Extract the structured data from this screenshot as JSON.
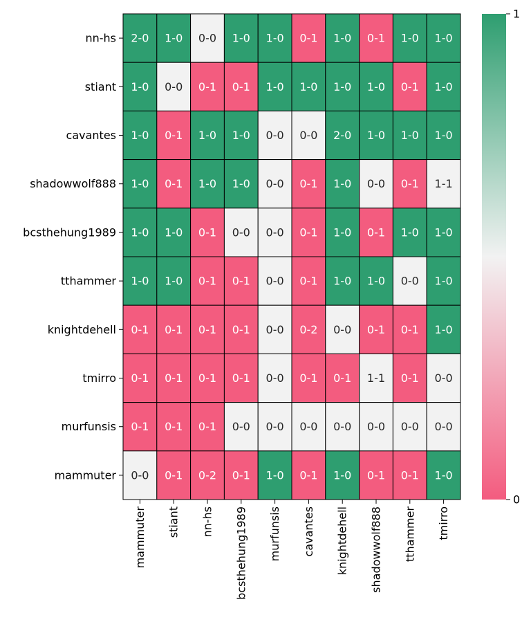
{
  "chart_data": {
    "type": "heatmap",
    "title": "",
    "xlabel": "",
    "ylabel": "",
    "rows": [
      "nn-hs",
      "stiant",
      "cavantes",
      "shadowwolf888",
      "bcsthehung1989",
      "tthammer",
      "knightdehell",
      "tmirro",
      "murfunsis",
      "mammuter"
    ],
    "columns": [
      "mammuter",
      "stiant",
      "nn-hs",
      "bcsthehung1989",
      "murfunsis",
      "cavantes",
      "knightdehell",
      "shadowwolf888",
      "tthammer",
      "tmirro"
    ],
    "labels": [
      [
        "2-0",
        "1-0",
        "0-0",
        "1-0",
        "1-0",
        "0-1",
        "1-0",
        "0-1",
        "1-0",
        "1-0"
      ],
      [
        "1-0",
        "0-0",
        "0-1",
        "0-1",
        "1-0",
        "1-0",
        "1-0",
        "1-0",
        "0-1",
        "1-0"
      ],
      [
        "1-0",
        "0-1",
        "1-0",
        "1-0",
        "0-0",
        "0-0",
        "2-0",
        "1-0",
        "1-0",
        "1-0"
      ],
      [
        "1-0",
        "0-1",
        "1-0",
        "1-0",
        "0-0",
        "0-1",
        "1-0",
        "0-0",
        "0-1",
        "1-1"
      ],
      [
        "1-0",
        "1-0",
        "0-1",
        "0-0",
        "0-0",
        "0-1",
        "1-0",
        "0-1",
        "1-0",
        "1-0"
      ],
      [
        "1-0",
        "1-0",
        "0-1",
        "0-1",
        "0-0",
        "0-1",
        "1-0",
        "1-0",
        "0-0",
        "1-0"
      ],
      [
        "0-1",
        "0-1",
        "0-1",
        "0-1",
        "0-0",
        "0-2",
        "0-0",
        "0-1",
        "0-1",
        "1-0"
      ],
      [
        "0-1",
        "0-1",
        "0-1",
        "0-1",
        "0-0",
        "0-1",
        "0-1",
        "1-1",
        "0-1",
        "0-0"
      ],
      [
        "0-1",
        "0-1",
        "0-1",
        "0-0",
        "0-0",
        "0-0",
        "0-0",
        "0-0",
        "0-0",
        "0-0"
      ],
      [
        "0-0",
        "0-1",
        "0-2",
        "0-1",
        "1-0",
        "0-1",
        "1-0",
        "0-1",
        "0-1",
        "1-0"
      ]
    ],
    "values": [
      [
        1,
        1,
        0.5,
        1,
        1,
        0,
        1,
        0,
        1,
        1
      ],
      [
        1,
        0.5,
        0,
        0,
        1,
        1,
        1,
        1,
        0,
        1
      ],
      [
        1,
        0,
        1,
        1,
        0.5,
        0.5,
        1,
        1,
        1,
        1
      ],
      [
        1,
        0,
        1,
        1,
        0.5,
        0,
        1,
        0.5,
        0,
        0.5
      ],
      [
        1,
        1,
        0,
        0.5,
        0.5,
        0,
        1,
        0,
        1,
        1
      ],
      [
        1,
        1,
        0,
        0,
        0.5,
        0,
        1,
        1,
        0.5,
        1
      ],
      [
        0,
        0,
        0,
        0,
        0.5,
        0,
        0.5,
        0,
        0,
        1
      ],
      [
        0,
        0,
        0,
        0,
        0.5,
        0,
        0,
        0.5,
        0,
        0.5
      ],
      [
        0,
        0,
        0,
        0.5,
        0.5,
        0.5,
        0.5,
        0.5,
        0.5,
        0.5
      ],
      [
        0.5,
        0,
        0,
        0,
        1,
        0,
        1,
        0,
        0,
        1
      ]
    ],
    "vmin": 0,
    "vmax": 1,
    "colorbar": {
      "ticks": [
        "0",
        "1"
      ],
      "colors": {
        "low": "#f35c7f",
        "mid": "#f2f2f2",
        "high": "#2e9e70"
      }
    },
    "text_colors": {
      "dark_cell": "#ffffff",
      "light_cell": "#262626"
    },
    "grid_line_color": "#000000"
  }
}
